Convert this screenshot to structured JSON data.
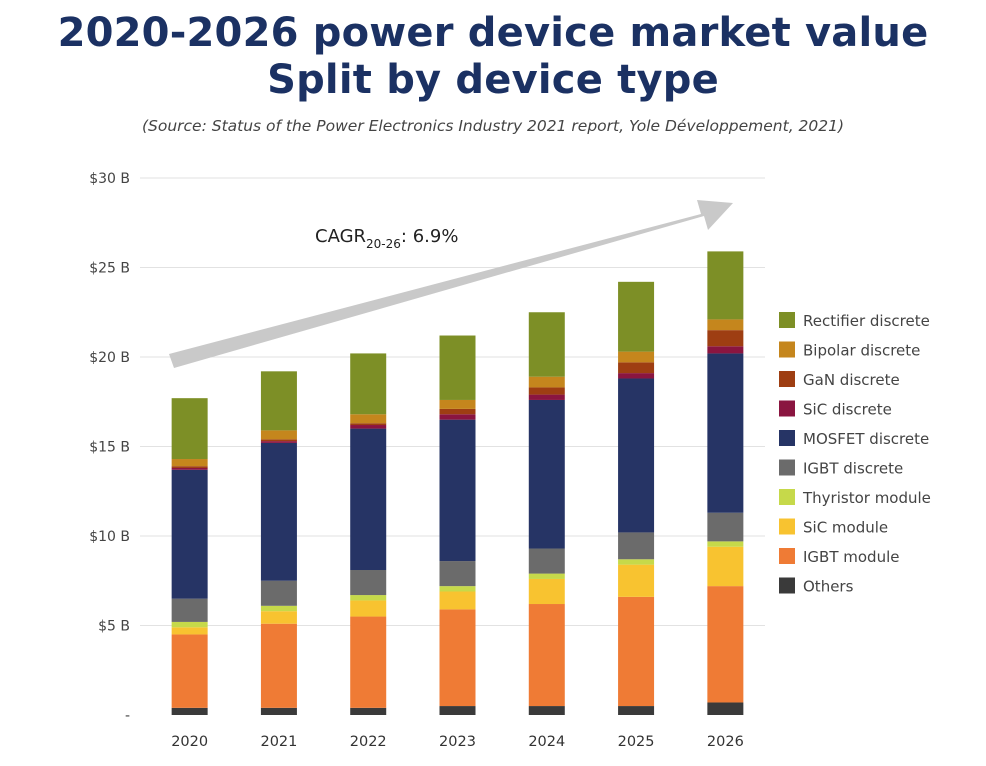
{
  "header": {
    "title_line1": "2020-2026 power device market value",
    "title_line2": "Split by device type",
    "source": "(Source: Status of the Power Electronics Industry 2021 report, Yole Développement, 2021)"
  },
  "annotation": {
    "cagr_prefix": "CAGR",
    "cagr_subscript": "20-26",
    "cagr_value": ": 6.9%"
  },
  "chart_data": {
    "type": "bar",
    "stacked": true,
    "title": "2020-2026 power device market value",
    "subtitle": "Split by device type",
    "categories": [
      "2020",
      "2021",
      "2022",
      "2023",
      "2024",
      "2025",
      "2026"
    ],
    "ylim": [
      0,
      30
    ],
    "yticks": [
      {
        "value": 0,
        "label": "-"
      },
      {
        "value": 5,
        "label": "$5 B"
      },
      {
        "value": 10,
        "label": "$10 B"
      },
      {
        "value": 15,
        "label": "$15 B"
      },
      {
        "value": 20,
        "label": "$20 B"
      },
      {
        "value": 25,
        "label": "$25 B"
      },
      {
        "value": 30,
        "label": "$30 B"
      }
    ],
    "grid": true,
    "legend_position": "right",
    "series": [
      {
        "name": "Others",
        "color": "#3a3a3a",
        "values": [
          0.4,
          0.4,
          0.4,
          0.5,
          0.5,
          0.5,
          0.7
        ]
      },
      {
        "name": "IGBT module",
        "color": "#ef7b35",
        "values": [
          4.1,
          4.7,
          5.1,
          5.4,
          5.7,
          6.1,
          6.5
        ]
      },
      {
        "name": "SiC module",
        "color": "#f8c330",
        "values": [
          0.4,
          0.7,
          0.9,
          1.0,
          1.4,
          1.8,
          2.2
        ]
      },
      {
        "name": "Thyristor module",
        "color": "#c6d94a",
        "values": [
          0.3,
          0.3,
          0.3,
          0.3,
          0.3,
          0.3,
          0.3
        ]
      },
      {
        "name": "IGBT discrete",
        "color": "#6b6b6b",
        "values": [
          1.3,
          1.4,
          1.4,
          1.4,
          1.4,
          1.5,
          1.6
        ]
      },
      {
        "name": "MOSFET discrete",
        "color": "#263465",
        "values": [
          7.2,
          7.7,
          7.9,
          7.9,
          8.3,
          8.6,
          8.9
        ]
      },
      {
        "name": "SiC discrete",
        "color": "#8a1540",
        "values": [
          0.1,
          0.1,
          0.2,
          0.3,
          0.3,
          0.3,
          0.4
        ]
      },
      {
        "name": "GaN discrete",
        "color": "#9e3e12",
        "values": [
          0.1,
          0.1,
          0.1,
          0.3,
          0.4,
          0.6,
          0.9
        ]
      },
      {
        "name": "Bipolar discrete",
        "color": "#c5861d",
        "values": [
          0.4,
          0.5,
          0.5,
          0.5,
          0.6,
          0.6,
          0.6
        ]
      },
      {
        "name": "Rectifier discrete",
        "color": "#7d8f26",
        "values": [
          3.4,
          3.3,
          3.4,
          3.6,
          3.6,
          3.9,
          3.8
        ]
      }
    ]
  }
}
